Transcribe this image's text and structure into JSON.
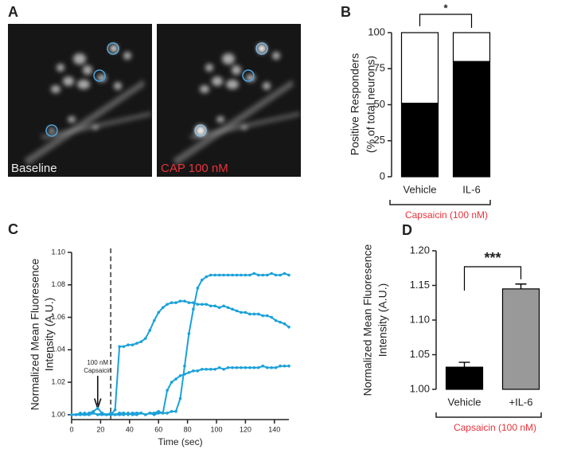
{
  "panel_a": {
    "label": "A",
    "left_caption": "Baseline",
    "right_caption": "CAP 100 nM"
  },
  "chart_data": [
    {
      "type": "stacked_bar",
      "panel_label": "B",
      "ylabel": [
        "Positive Responders",
        "(% of total neurons)"
      ],
      "categories": [
        "Vehicle",
        "IL-6"
      ],
      "series": [
        {
          "color": "#000000",
          "values": [
            51,
            80
          ]
        },
        {
          "color": "#ffffff",
          "values": [
            49,
            20
          ]
        }
      ],
      "ylim": [
        0,
        100
      ],
      "yticks": [
        0,
        25,
        50,
        75,
        100
      ],
      "significance": "*",
      "group_label": "Capsaicin (100 nM)",
      "group_label_color": "#e8333a"
    },
    {
      "type": "line",
      "panel_label": "C",
      "ylabel": [
        "Normalized Mean Fluoresence",
        "Intensity (A.U.)"
      ],
      "xlabel": "Time (sec)",
      "x": [
        0,
        3,
        6,
        9,
        12,
        15,
        18,
        21,
        24,
        27,
        30,
        33,
        36,
        39,
        42,
        45,
        48,
        51,
        54,
        57,
        60,
        63,
        66,
        69,
        72,
        75,
        78,
        81,
        84,
        87,
        90,
        93,
        96,
        99,
        102,
        105,
        108,
        111,
        114,
        117,
        120,
        123,
        126,
        129,
        132,
        135,
        138,
        141,
        144,
        147,
        150
      ],
      "series": [
        {
          "color": "#1ba1d9",
          "values": [
            1.0,
            1.0,
            1.001,
            1.0,
            1.001,
            1.002,
            1.004,
            1.001,
            1.0,
            1.0,
            1.003,
            1.042,
            1.042,
            1.043,
            1.043,
            1.044,
            1.045,
            1.047,
            1.052,
            1.058,
            1.063,
            1.066,
            1.068,
            1.069,
            1.069,
            1.07,
            1.07,
            1.069,
            1.069,
            1.068,
            1.068,
            1.068,
            1.067,
            1.067,
            1.066,
            1.067,
            1.066,
            1.065,
            1.064,
            1.063,
            1.063,
            1.062,
            1.062,
            1.062,
            1.061,
            1.061,
            1.06,
            1.058,
            1.057,
            1.056,
            1.054
          ]
        },
        {
          "color": "#1ba1d9",
          "values": [
            1.0,
            1.0,
            1.0,
            1.001,
            1.0,
            1.001,
            1.0,
            1.001,
            1.0,
            1.001,
            1.0,
            1.001,
            1.001,
            1.0,
            1.001,
            1.001,
            1.001,
            1.0,
            1.001,
            1.001,
            1.002,
            1.001,
            1.015,
            1.02,
            1.022,
            1.024,
            1.025,
            1.026,
            1.027,
            1.027,
            1.028,
            1.028,
            1.028,
            1.028,
            1.029,
            1.028,
            1.029,
            1.029,
            1.029,
            1.029,
            1.029,
            1.029,
            1.029,
            1.029,
            1.03,
            1.029,
            1.029,
            1.029,
            1.03,
            1.03,
            1.03
          ]
        },
        {
          "color": "#1ba1d9",
          "values": [
            1.0,
            1.0,
            1.0,
            1.0,
            1.0,
            1.001,
            1.0,
            1.0,
            1.0,
            1.0,
            1.0,
            1.0,
            1.0,
            1.001,
            1.0,
            1.0,
            1.001,
            1.0,
            1.001,
            1.0,
            1.001,
            1.001,
            1.001,
            1.002,
            1.002,
            1.01,
            1.03,
            1.05,
            1.065,
            1.078,
            1.083,
            1.085,
            1.086,
            1.086,
            1.086,
            1.086,
            1.086,
            1.086,
            1.086,
            1.086,
            1.086,
            1.086,
            1.087,
            1.086,
            1.086,
            1.086,
            1.087,
            1.086,
            1.086,
            1.087,
            1.086
          ]
        }
      ],
      "xlim": [
        0,
        150
      ],
      "xticks": [
        0,
        20,
        40,
        60,
        80,
        100,
        120,
        140
      ],
      "ylim": [
        0.997,
        1.1
      ],
      "yticks": [
        {
          "value": 1,
          "label": "1.00"
        },
        {
          "value": 1.02,
          "label": "1.02"
        },
        {
          "value": 1.04,
          "label": "1.04"
        },
        {
          "value": 1.06,
          "label": "1.06"
        },
        {
          "value": 1.08,
          "label": "1.08"
        },
        {
          "value": 1.1,
          "label": "1.10"
        }
      ],
      "annotation": {
        "text": [
          "100 nM",
          "Capsaicin"
        ],
        "x": 18
      },
      "marker_x": 27
    },
    {
      "type": "bar",
      "panel_label": "D",
      "ylabel": [
        "Normalized Mean Fluoresence",
        "Intensity (A.U.)"
      ],
      "categories": [
        "Vehicle",
        "+IL-6"
      ],
      "values": [
        1.032,
        1.145
      ],
      "errors": [
        0.007,
        0.007
      ],
      "colors": [
        "#000000",
        "#999999"
      ],
      "ylim": [
        1,
        1.2
      ],
      "yticks": [
        {
          "value": 1,
          "label": "1.00"
        },
        {
          "value": 1.05,
          "label": "1.05"
        },
        {
          "value": 1.1,
          "label": "1.10"
        },
        {
          "value": 1.15,
          "label": "1.15"
        },
        {
          "value": 1.2,
          "label": "1.20"
        }
      ],
      "significance": "***",
      "group_label": "Capsaicin (100 nM)",
      "group_label_color": "#e8333a"
    }
  ]
}
